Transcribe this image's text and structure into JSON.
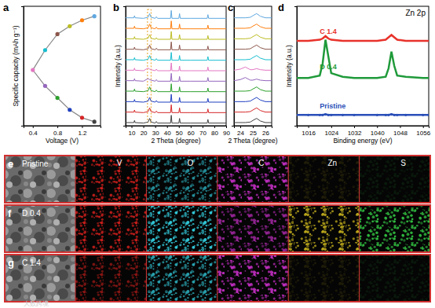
{
  "chart_data": [
    {
      "type": "line",
      "label": "a",
      "xlabel": "Voltage (V)",
      "ylabel": "Specific capacity (mAh g⁻¹)",
      "xlim": [
        0.25,
        1.5
      ],
      "xticks": [
        0.4,
        0.8,
        1.2
      ],
      "ylim": [
        0,
        300
      ],
      "tick_labels": "x",
      "series": [
        {
          "color": "#888888",
          "marker": "circle",
          "x": [
            1.4,
            1.2,
            1.0,
            0.8,
            0.6,
            0.4,
            0.6,
            0.8,
            1.0,
            1.2,
            1.4
          ],
          "values": [
            10,
            20,
            40,
            70,
            100,
            140,
            190,
            230,
            250,
            265,
            275
          ],
          "colors": [
            "#404040",
            "#d62728",
            "#1f3fbf",
            "#2ca02c",
            "#9467bd",
            "#e377c2",
            "#17becf",
            "#8c564b",
            "#bcbd22",
            "#ff7f0e",
            "#5fa8e0"
          ]
        }
      ]
    },
    {
      "type": "line",
      "label": "b",
      "xlabel": "2 Theta (degree)",
      "ylabel": "Intensity (a.u.)",
      "xlim": [
        5,
        90
      ],
      "xticks": [
        10,
        20,
        30,
        40,
        50,
        60,
        70,
        80,
        90
      ],
      "ylim": [
        -2,
        112
      ],
      "tick_labels": "x",
      "x": [
        5,
        12,
        12.5,
        13,
        20,
        24,
        25.3,
        26.5,
        30,
        31,
        32,
        43,
        43.6,
        44.2,
        50,
        50.6,
        51.2,
        60,
        74,
        74.6,
        75.2,
        90
      ],
      "series": [
        {
          "color": "#404040",
          "values": [
            1,
            1,
            3,
            1,
            0.5,
            1.5,
            5,
            1.5,
            0.5,
            2,
            0.5,
            0.5,
            8,
            0.5,
            0.5,
            5,
            0.5,
            0.5,
            0.5,
            4,
            0.5,
            0.5
          ]
        },
        {
          "color": "#d62728",
          "values": [
            11,
            11,
            13,
            11,
            10.5,
            11.5,
            15,
            11.5,
            10.5,
            12,
            10.5,
            10.5,
            18,
            10.5,
            10.5,
            15,
            10.5,
            10.5,
            10.5,
            14,
            10.5,
            10.5
          ]
        },
        {
          "color": "#1f3fbf",
          "values": [
            21,
            21,
            23,
            21,
            20.5,
            21.5,
            25,
            21.5,
            20.5,
            22,
            20.5,
            20.5,
            28,
            20.5,
            20.5,
            25,
            20.5,
            20.5,
            20.5,
            24,
            20.5,
            20.5
          ]
        },
        {
          "color": "#2ca02c",
          "values": [
            31,
            31,
            33,
            31,
            30.5,
            31.5,
            35,
            31.5,
            30.5,
            32,
            30.5,
            30.5,
            38,
            30.5,
            30.5,
            35,
            30.5,
            30.5,
            30.5,
            34,
            30.5,
            30.5
          ]
        },
        {
          "color": "#9467bd",
          "values": [
            41,
            41,
            43,
            41,
            40.5,
            43,
            42,
            41.5,
            40.5,
            42,
            40.5,
            40.5,
            48,
            40.5,
            40.5,
            45,
            40.5,
            40.5,
            40.5,
            44,
            40.5,
            40.5
          ]
        },
        {
          "color": "#e377c2",
          "values": [
            51,
            51,
            53,
            51,
            50.5,
            53,
            52,
            51.5,
            50.5,
            52,
            50.5,
            50.5,
            58,
            50.5,
            50.5,
            55,
            50.5,
            50.5,
            50.5,
            54,
            50.5,
            50.5
          ]
        },
        {
          "color": "#17becf",
          "values": [
            61,
            61,
            63,
            61,
            60.5,
            61.5,
            65,
            61.5,
            60.5,
            62,
            60.5,
            60.5,
            68,
            60.5,
            60.5,
            65,
            60.5,
            60.5,
            60.5,
            64,
            60.5,
            60.5
          ]
        },
        {
          "color": "#8c564b",
          "values": [
            71,
            71,
            73,
            71,
            70.5,
            71.5,
            75,
            71.5,
            70.5,
            72,
            70.5,
            70.5,
            78,
            70.5,
            70.5,
            75,
            70.5,
            70.5,
            70.5,
            74,
            70.5,
            70.5
          ]
        },
        {
          "color": "#bcbd22",
          "values": [
            81,
            81,
            83,
            81,
            80.5,
            81.5,
            85,
            81.5,
            80.5,
            82,
            80.5,
            80.5,
            88,
            80.5,
            80.5,
            85,
            80.5,
            80.5,
            80.5,
            84,
            80.5,
            80.5
          ]
        },
        {
          "color": "#ff7f0e",
          "values": [
            91,
            91,
            93,
            91,
            90.5,
            91.5,
            95,
            91.5,
            90.5,
            92,
            90.5,
            90.5,
            98,
            90.5,
            90.5,
            95,
            90.5,
            90.5,
            90.5,
            94,
            90.5,
            90.5
          ]
        },
        {
          "color": "#5fa8e0",
          "values": [
            101,
            101,
            103,
            101,
            100.5,
            101.5,
            105,
            101.5,
            100.5,
            102,
            100.5,
            100.5,
            108,
            100.5,
            100.5,
            105,
            100.5,
            100.5,
            100.5,
            104,
            100.5,
            100.5
          ]
        }
      ]
    },
    {
      "type": "line",
      "label": "c",
      "xlabel": "2 Theta (degree)",
      "xlim": [
        23.5,
        26.5
      ],
      "xticks": [
        24,
        25,
        26
      ],
      "ylim": [
        -2,
        112
      ],
      "tick_labels": "x",
      "x": [
        23.5,
        24,
        24.4,
        24.8,
        25.0,
        25.3,
        25.6,
        26,
        26.5
      ],
      "series": [
        {
          "color": "#404040",
          "values": [
            1,
            1,
            1,
            1.5,
            3,
            5,
            2.5,
            1,
            1
          ]
        },
        {
          "color": "#d62728",
          "values": [
            11,
            11,
            11,
            11.5,
            13,
            15,
            12.5,
            11,
            11
          ]
        },
        {
          "color": "#1f3fbf",
          "values": [
            21,
            21,
            21,
            21.5,
            23,
            25,
            22.5,
            21,
            21
          ]
        },
        {
          "color": "#2ca02c",
          "values": [
            31,
            31,
            31,
            31.5,
            33,
            35,
            32.5,
            31,
            31
          ]
        },
        {
          "color": "#9467bd",
          "values": [
            41,
            42,
            44,
            41.5,
            41.5,
            42.5,
            41.5,
            41,
            41
          ]
        },
        {
          "color": "#e377c2",
          "values": [
            51,
            52,
            54,
            51.5,
            51.5,
            52.5,
            51.5,
            51,
            51
          ]
        },
        {
          "color": "#17becf",
          "values": [
            61,
            61,
            61,
            61.5,
            63,
            65,
            62.5,
            61,
            61
          ]
        },
        {
          "color": "#8c564b",
          "values": [
            71,
            71,
            71,
            71.5,
            73,
            75,
            72.5,
            71,
            71
          ]
        },
        {
          "color": "#bcbd22",
          "values": [
            81,
            81,
            81,
            81.5,
            83,
            85,
            82.5,
            81,
            81
          ]
        },
        {
          "color": "#ff7f0e",
          "values": [
            91,
            91,
            91,
            91.5,
            93,
            95,
            92.5,
            91,
            91
          ]
        },
        {
          "color": "#5fa8e0",
          "values": [
            101,
            101,
            101,
            101.5,
            103,
            105,
            102.5,
            101,
            101
          ]
        }
      ]
    },
    {
      "type": "line",
      "label": "d",
      "title": "Zn 2p",
      "xlabel": "Binding energy (eV)",
      "ylabel": "Intensity (a.u.)",
      "xlim": [
        1012,
        1058
      ],
      "xticks": [
        1016,
        1024,
        1032,
        1040,
        1048,
        1056
      ],
      "ylim": [
        0,
        100
      ],
      "tick_labels": "x",
      "x": [
        1012,
        1016,
        1020,
        1021,
        1022,
        1023,
        1024,
        1028,
        1032,
        1040,
        1043,
        1044,
        1045,
        1046,
        1047,
        1050,
        1056,
        1058
      ],
      "series": [
        {
          "name": "C 1.4",
          "color": "#e8322a",
          "values": [
            71,
            71,
            72,
            73,
            75,
            73,
            72,
            71,
            71,
            71,
            72,
            74,
            76,
            74,
            72,
            71,
            71,
            71
          ]
        },
        {
          "name": "D 0.4",
          "color": "#1f9a3a",
          "values": [
            40,
            40,
            42,
            52,
            72,
            58,
            44,
            41,
            40,
            40,
            41,
            48,
            62,
            50,
            42,
            41,
            40,
            40
          ]
        },
        {
          "name": "Pristine",
          "color": "#2a4fb8",
          "marker": "circle",
          "values": [
            9,
            9,
            9,
            9,
            9.5,
            9,
            9,
            9,
            9,
            9,
            9,
            9,
            9.5,
            9,
            9,
            9,
            9,
            9
          ]
        }
      ]
    }
  ],
  "mapping": {
    "rows": [
      {
        "label": "e",
        "name": "Pristine"
      },
      {
        "label": "f",
        "name": "D 0.4"
      },
      {
        "label": "g",
        "name": "C 1.4"
      }
    ],
    "columns": [
      {
        "name": "V",
        "color": "#e0201c"
      },
      {
        "name": "O",
        "color": "#30c8d8"
      },
      {
        "name": "C",
        "color": "#d030d0"
      },
      {
        "name": "Zn",
        "color": "#e8d020"
      },
      {
        "name": "S",
        "color": "#30c040"
      }
    ]
  },
  "watermark": "大数跨境"
}
